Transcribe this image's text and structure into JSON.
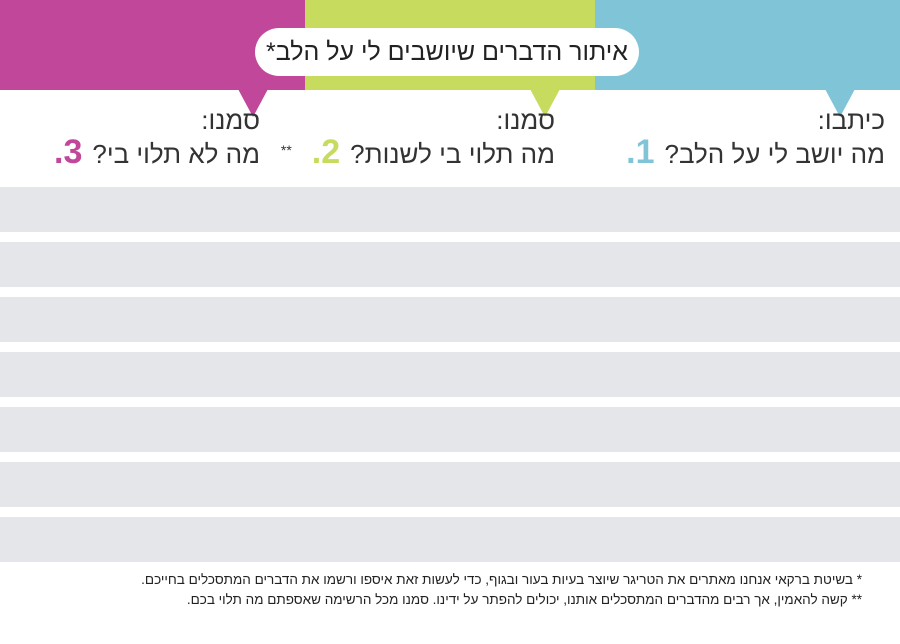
{
  "title": "איתור הדברים שיושבים לי על הלב*",
  "colors": {
    "blue": "#7fc5d7",
    "green": "#c7dc5f",
    "pink": "#c0479a",
    "row": "#e5e6ea"
  },
  "columns": [
    {
      "number": "1.",
      "lead": "כיתבו:",
      "question": "מה יושב לי על הלב?",
      "stars": ""
    },
    {
      "number": "2.",
      "lead": "סמנו:",
      "question": "מה תלוי בי לשנות?",
      "stars": "**"
    },
    {
      "number": "3.",
      "lead": "סמנו:",
      "question": "מה לא תלוי בי?",
      "stars": ""
    }
  ],
  "rows_count": 7,
  "footnotes": [
    "* בשיטת ברקאי אנחנו מאתרים את הטריגר שיוצר בעיות בעור ובגוף, כדי לעשות זאת איספו ורשמו את הדברים המתסכלים בחייכם.",
    "** קשה להאמין, אך רבים מהדברים המתסכלים אותנו, יכולים להפתר על ידינו. סמנו מכל הרשימה שאספתם מה תלוי בכם."
  ]
}
